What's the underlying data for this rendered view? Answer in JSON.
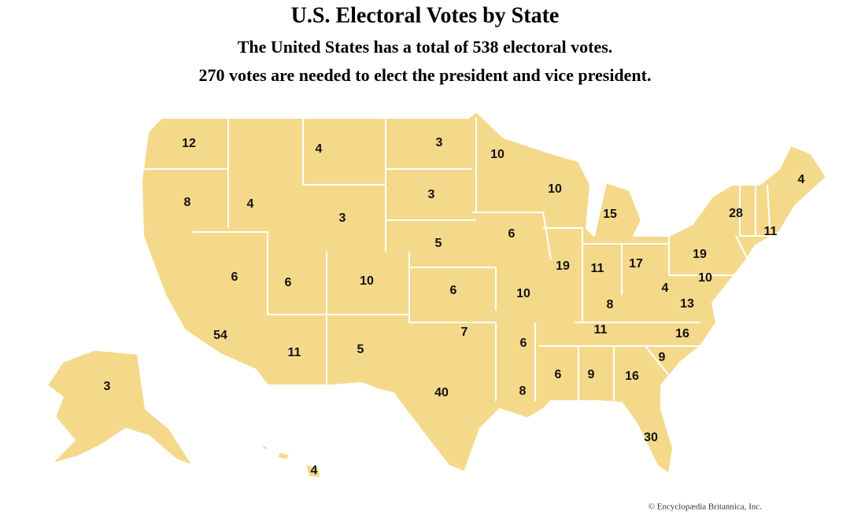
{
  "header": {
    "title": "U.S. Electoral Votes by State",
    "subtitle_lines": [
      "The United States has a total of 538 electoral votes.",
      "270 votes are needed to elect the president and vice president."
    ]
  },
  "map": {
    "labels": [
      12,
      4,
      3,
      10,
      8,
      4,
      3,
      3,
      10,
      15,
      4,
      28,
      11,
      5,
      6,
      19,
      11,
      17,
      19,
      10,
      6,
      6,
      10,
      6,
      10,
      4,
      8,
      13,
      11,
      16,
      54,
      11,
      5,
      7,
      6,
      9,
      6,
      9,
      16,
      40,
      8,
      30,
      3,
      4
    ]
  },
  "footer": {
    "credit": "© Encyclopædia Britannica, Inc."
  }
}
